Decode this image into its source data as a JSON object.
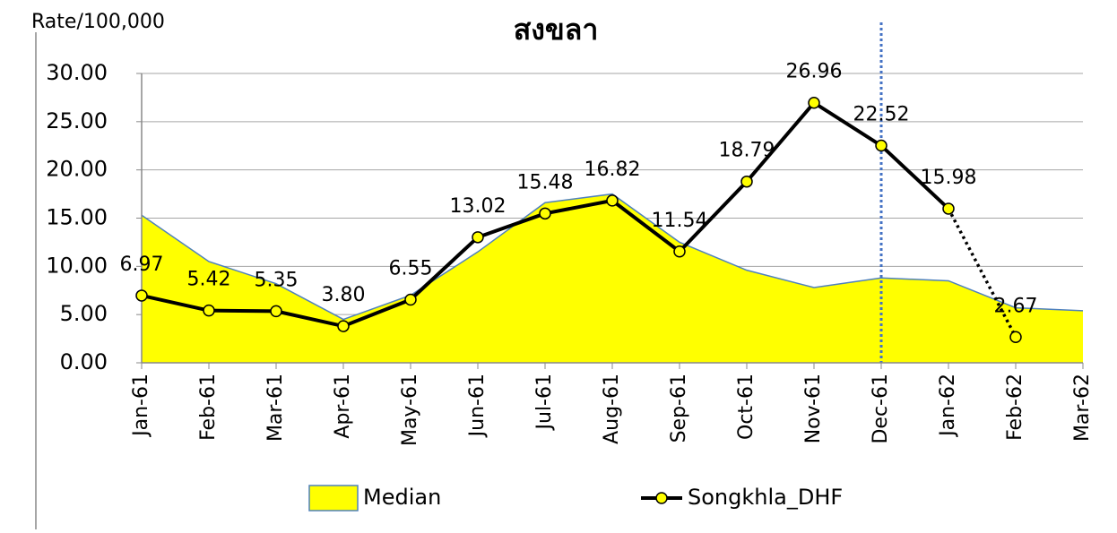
{
  "chart_data": {
    "type": "line",
    "title": "สงขลา",
    "ylabel": "Rate/100,000",
    "categories": [
      "Jan-61",
      "Feb-61",
      "Mar-61",
      "Apr-61",
      "May-61",
      "Jun-61",
      "Jul-61",
      "Aug-61",
      "Sep-61",
      "Oct-61",
      "Nov-61",
      "Dec-61",
      "Jan-62",
      "Feb-62",
      "Mar-62"
    ],
    "series": [
      {
        "name": "Median",
        "kind": "area",
        "color": "#ffff00",
        "edge_color": "#4f81bd",
        "values": [
          15.3,
          10.5,
          8.2,
          4.5,
          7.0,
          11.5,
          16.6,
          17.5,
          12.5,
          9.6,
          7.8,
          8.8,
          8.5,
          5.7,
          5.4
        ]
      },
      {
        "name": "Songkhla_DHF",
        "kind": "line",
        "color": "#000000",
        "marker_color": "#ffff00",
        "dotted_last_segment": true,
        "values": [
          6.97,
          5.42,
          5.35,
          3.8,
          6.55,
          13.02,
          15.48,
          16.82,
          11.54,
          18.79,
          26.96,
          22.52,
          15.98,
          2.67,
          null
        ],
        "value_labels": [
          "6.97",
          "5.42",
          "5.35",
          "3.80",
          "6.55",
          "13.02",
          "15.48",
          "16.82",
          "11.54",
          "18.79",
          "26.96",
          "22.52",
          "15.98",
          "2.67",
          null
        ]
      }
    ],
    "marker_line": {
      "x": "Dec-61",
      "color": "#4472c4"
    },
    "ylim": [
      0,
      30
    ],
    "yticks": [
      {
        "value": 0,
        "label": "0.00"
      },
      {
        "value": 5,
        "label": "5.00"
      },
      {
        "value": 10,
        "label": "10.00"
      },
      {
        "value": 15,
        "label": "15.00"
      },
      {
        "value": 20,
        "label": "20.00"
      },
      {
        "value": 25,
        "label": "25.00"
      },
      {
        "value": 30,
        "label": "30.00"
      }
    ],
    "grid": true
  }
}
